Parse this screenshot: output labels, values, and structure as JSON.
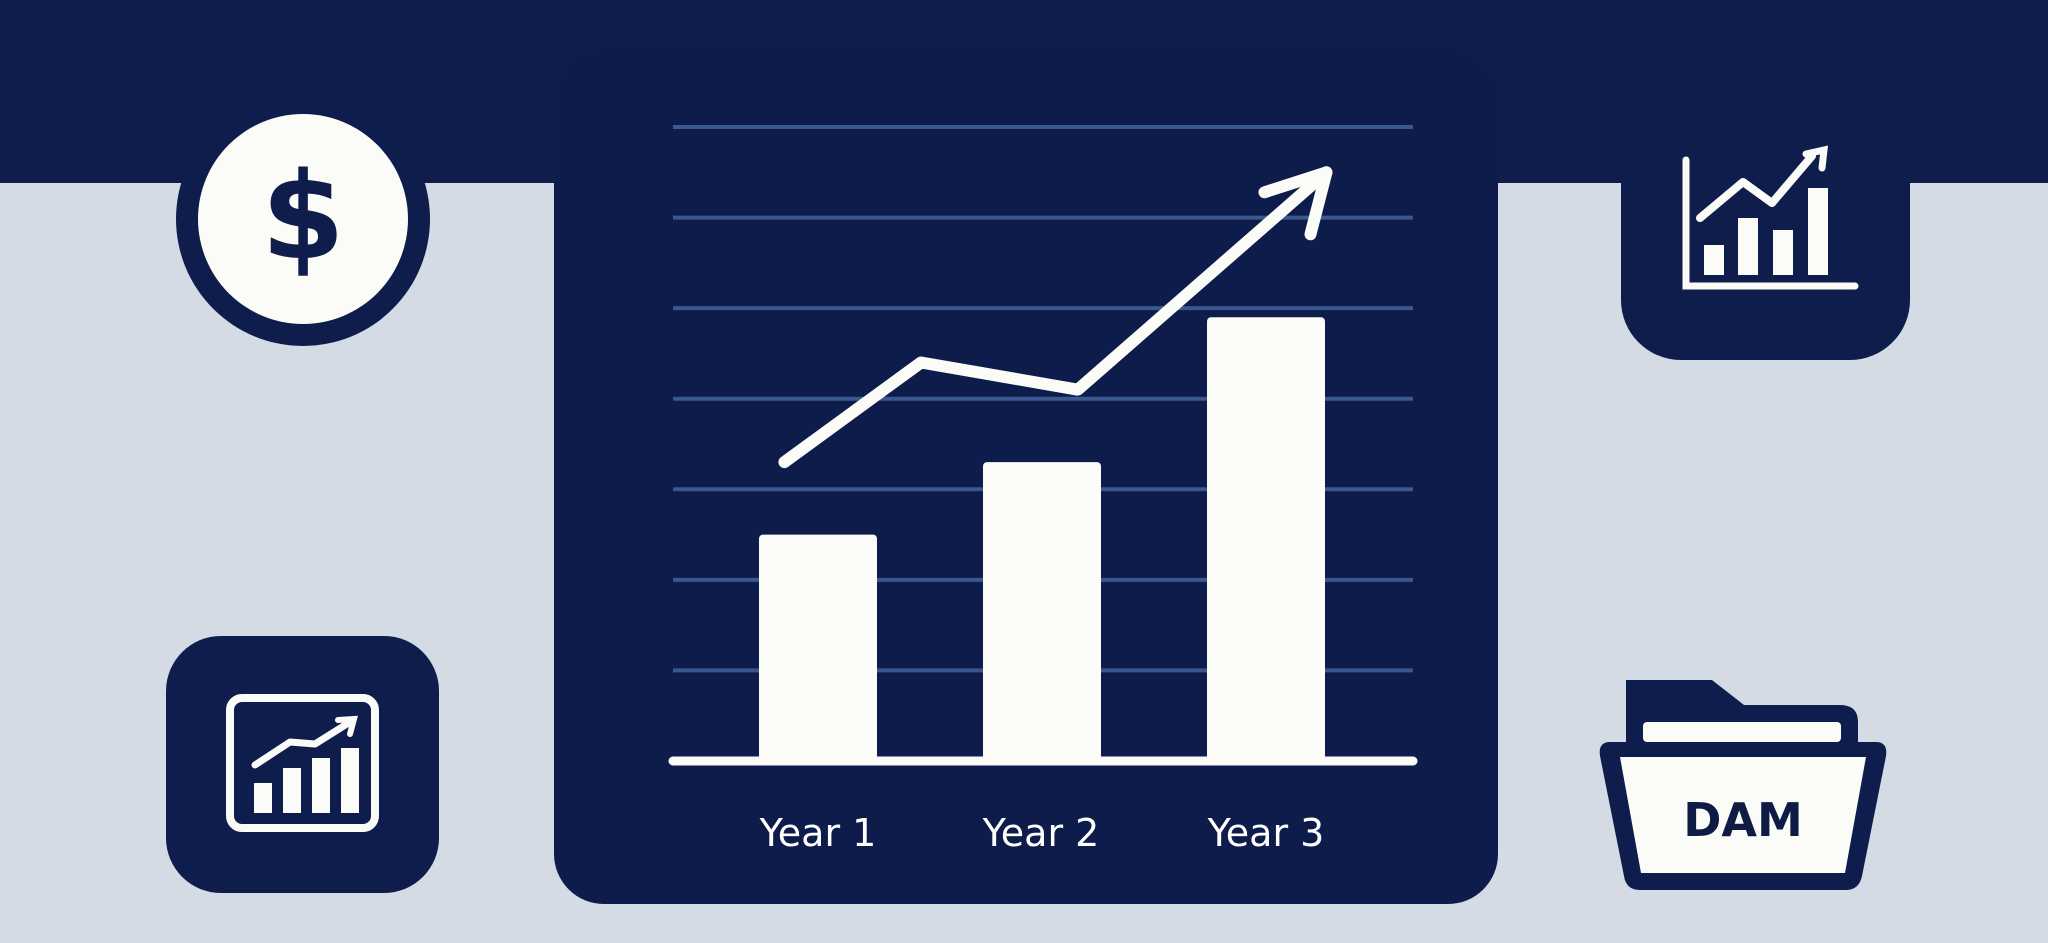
{
  "colors": {
    "background": "#d4dbe5",
    "navy": "#0e1d4c",
    "panel": "#0d1c4a",
    "gridline": "#3b5790",
    "mark": "#fbfbf8"
  },
  "icons": [
    "dollar-coin-icon",
    "growth-chart-icon",
    "analytics-report-icon",
    "dam-folder-icon"
  ],
  "folder_label": "DAM",
  "chart_data": {
    "type": "bar",
    "title": "",
    "xlabel": "",
    "ylabel": "",
    "categories": [
      "Year 1",
      "Year 2",
      "Year 3"
    ],
    "values": [
      2.5,
      3.3,
      4.9
    ],
    "ylim": [
      0,
      7
    ],
    "grid": true,
    "trend_line": {
      "x": [
        -0.15,
        0.46,
        1.16,
        2.27
      ],
      "y": [
        3.3,
        4.4,
        4.1,
        6.5
      ],
      "arrow_end": true
    }
  }
}
